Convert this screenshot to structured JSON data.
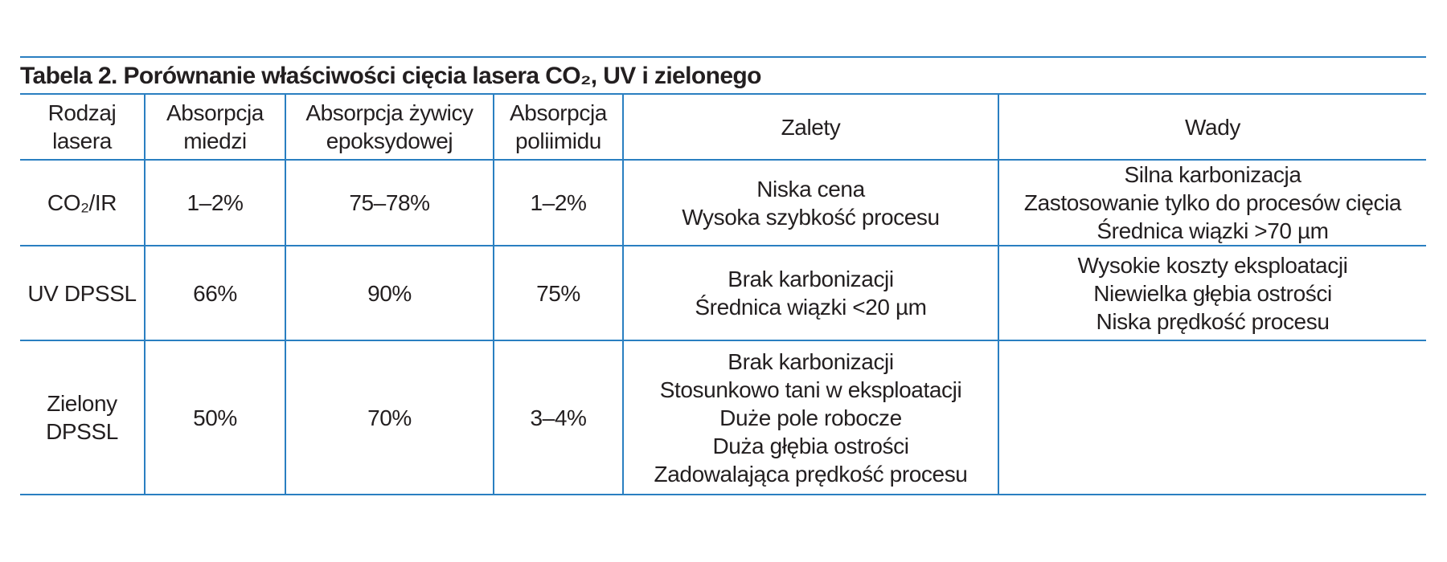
{
  "title": "Tabela 2. Porównanie właściwości cięcia lasera CO₂, UV i zielonego",
  "table": {
    "header": [
      [
        "Rodzaj",
        "lasera"
      ],
      [
        "Absorpcja",
        "miedzi"
      ],
      [
        "Absorpcja żywicy",
        "epoksydowej"
      ],
      [
        "Absorpcja",
        "poliimidu"
      ],
      [
        "Zalety"
      ],
      [
        "Wady"
      ]
    ],
    "rows": [
      [
        [
          "CO₂/IR"
        ],
        [
          "1–2%"
        ],
        [
          "75–78%"
        ],
        [
          "1–2%"
        ],
        [
          "Niska cena",
          "Wysoka szybkość procesu"
        ],
        [
          "Silna karbonizacja",
          "Zastosowanie tylko do procesów cięcia",
          "Średnica wiązki >70 µm"
        ]
      ],
      [
        [
          "UV DPSSL"
        ],
        [
          "66%"
        ],
        [
          "90%"
        ],
        [
          "75%"
        ],
        [
          "Brak karbonizacji",
          "Średnica wiązki <20 µm"
        ],
        [
          "Wysokie koszty eksploatacji",
          "Niewielka głębia ostrości",
          "Niska prędkość procesu"
        ]
      ],
      [
        [
          "Zielony",
          "DPSSL"
        ],
        [
          "50%"
        ],
        [
          "70%"
        ],
        [
          "3–4%"
        ],
        [
          "Brak karbonizacji",
          "Stosunkowo tani w eksploatacji",
          "Duże pole robocze",
          "Duża głębia ostrości",
          "Zadowalająca prędkość procesu"
        ],
        []
      ]
    ]
  }
}
